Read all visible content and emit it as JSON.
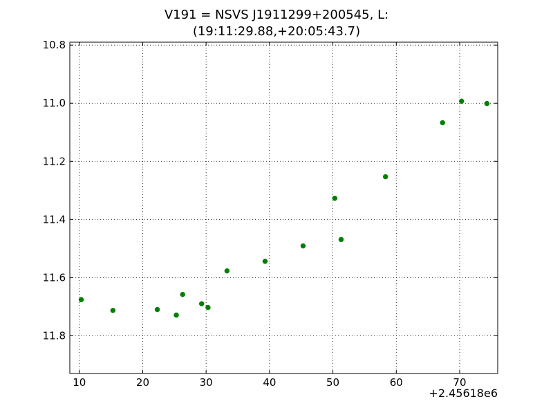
{
  "chart_data": {
    "type": "scatter",
    "title_line1": "V191 = NSVS J1911299+200545, L:",
    "title_line2": "(19:11:29.88,+20:05:43.7)",
    "xlabel": "",
    "ylabel": "",
    "x_offset_label": "+2.45618e6",
    "xlim": [
      8.5,
      76
    ],
    "ylim": [
      11.93,
      10.79
    ],
    "y_inverted": true,
    "grid": true,
    "grid_style": "dotted",
    "marker_color": "#008000",
    "x_ticks": [
      10,
      20,
      30,
      40,
      50,
      60,
      70
    ],
    "x_tick_labels": [
      "10",
      "20",
      "30",
      "40",
      "50",
      "60",
      "70"
    ],
    "y_ticks": [
      10.8,
      11.0,
      11.2,
      11.4,
      11.6,
      11.8
    ],
    "y_tick_labels": [
      "10.8",
      "11.0",
      "11.2",
      "11.4",
      "11.6",
      "11.8"
    ],
    "series": [
      {
        "points": [
          [
            10.3,
            11.676
          ],
          [
            15.3,
            11.713
          ],
          [
            22.3,
            11.71
          ],
          [
            25.3,
            11.729
          ],
          [
            26.3,
            11.658
          ],
          [
            29.3,
            11.69
          ],
          [
            30.3,
            11.703
          ],
          [
            33.3,
            11.577
          ],
          [
            39.3,
            11.544
          ],
          [
            45.3,
            11.491
          ],
          [
            50.3,
            11.327
          ],
          [
            51.3,
            11.469
          ],
          [
            58.3,
            11.253
          ],
          [
            67.3,
            11.067
          ],
          [
            70.3,
            10.993
          ],
          [
            74.3,
            11.001
          ]
        ]
      }
    ]
  }
}
